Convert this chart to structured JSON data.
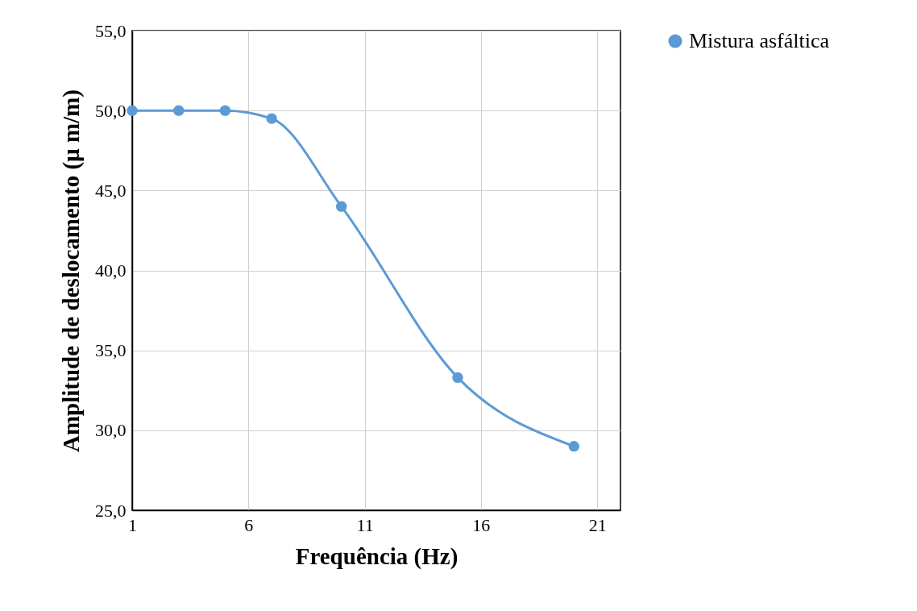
{
  "chart_data": {
    "type": "line",
    "xlabel": "Frequência (Hz)",
    "ylabel": "Amplitude de deslocamento (µ m/m)",
    "x": [
      1,
      3,
      5,
      7,
      10,
      15,
      20
    ],
    "series": [
      {
        "name": "Mistura asfáltica",
        "color": "#5b9bd5",
        "values": [
          50,
          50,
          50,
          49.5,
          44,
          33.3,
          29
        ]
      }
    ],
    "xlim": [
      1,
      22
    ],
    "xticks": [
      1,
      6,
      11,
      16,
      21
    ],
    "ylim": [
      25,
      55
    ],
    "yticks": [
      {
        "value": 25,
        "label": "25,0"
      },
      {
        "value": 30,
        "label": "30,0"
      },
      {
        "value": 35,
        "label": "35,0"
      },
      {
        "value": 40,
        "label": "40,0"
      },
      {
        "value": 45,
        "label": "45,0"
      },
      {
        "value": 50,
        "label": "50,0"
      },
      {
        "value": 55,
        "label": "55,0"
      }
    ],
    "grid": true,
    "legend": "right",
    "marker": "circle",
    "line_style": "solid"
  }
}
